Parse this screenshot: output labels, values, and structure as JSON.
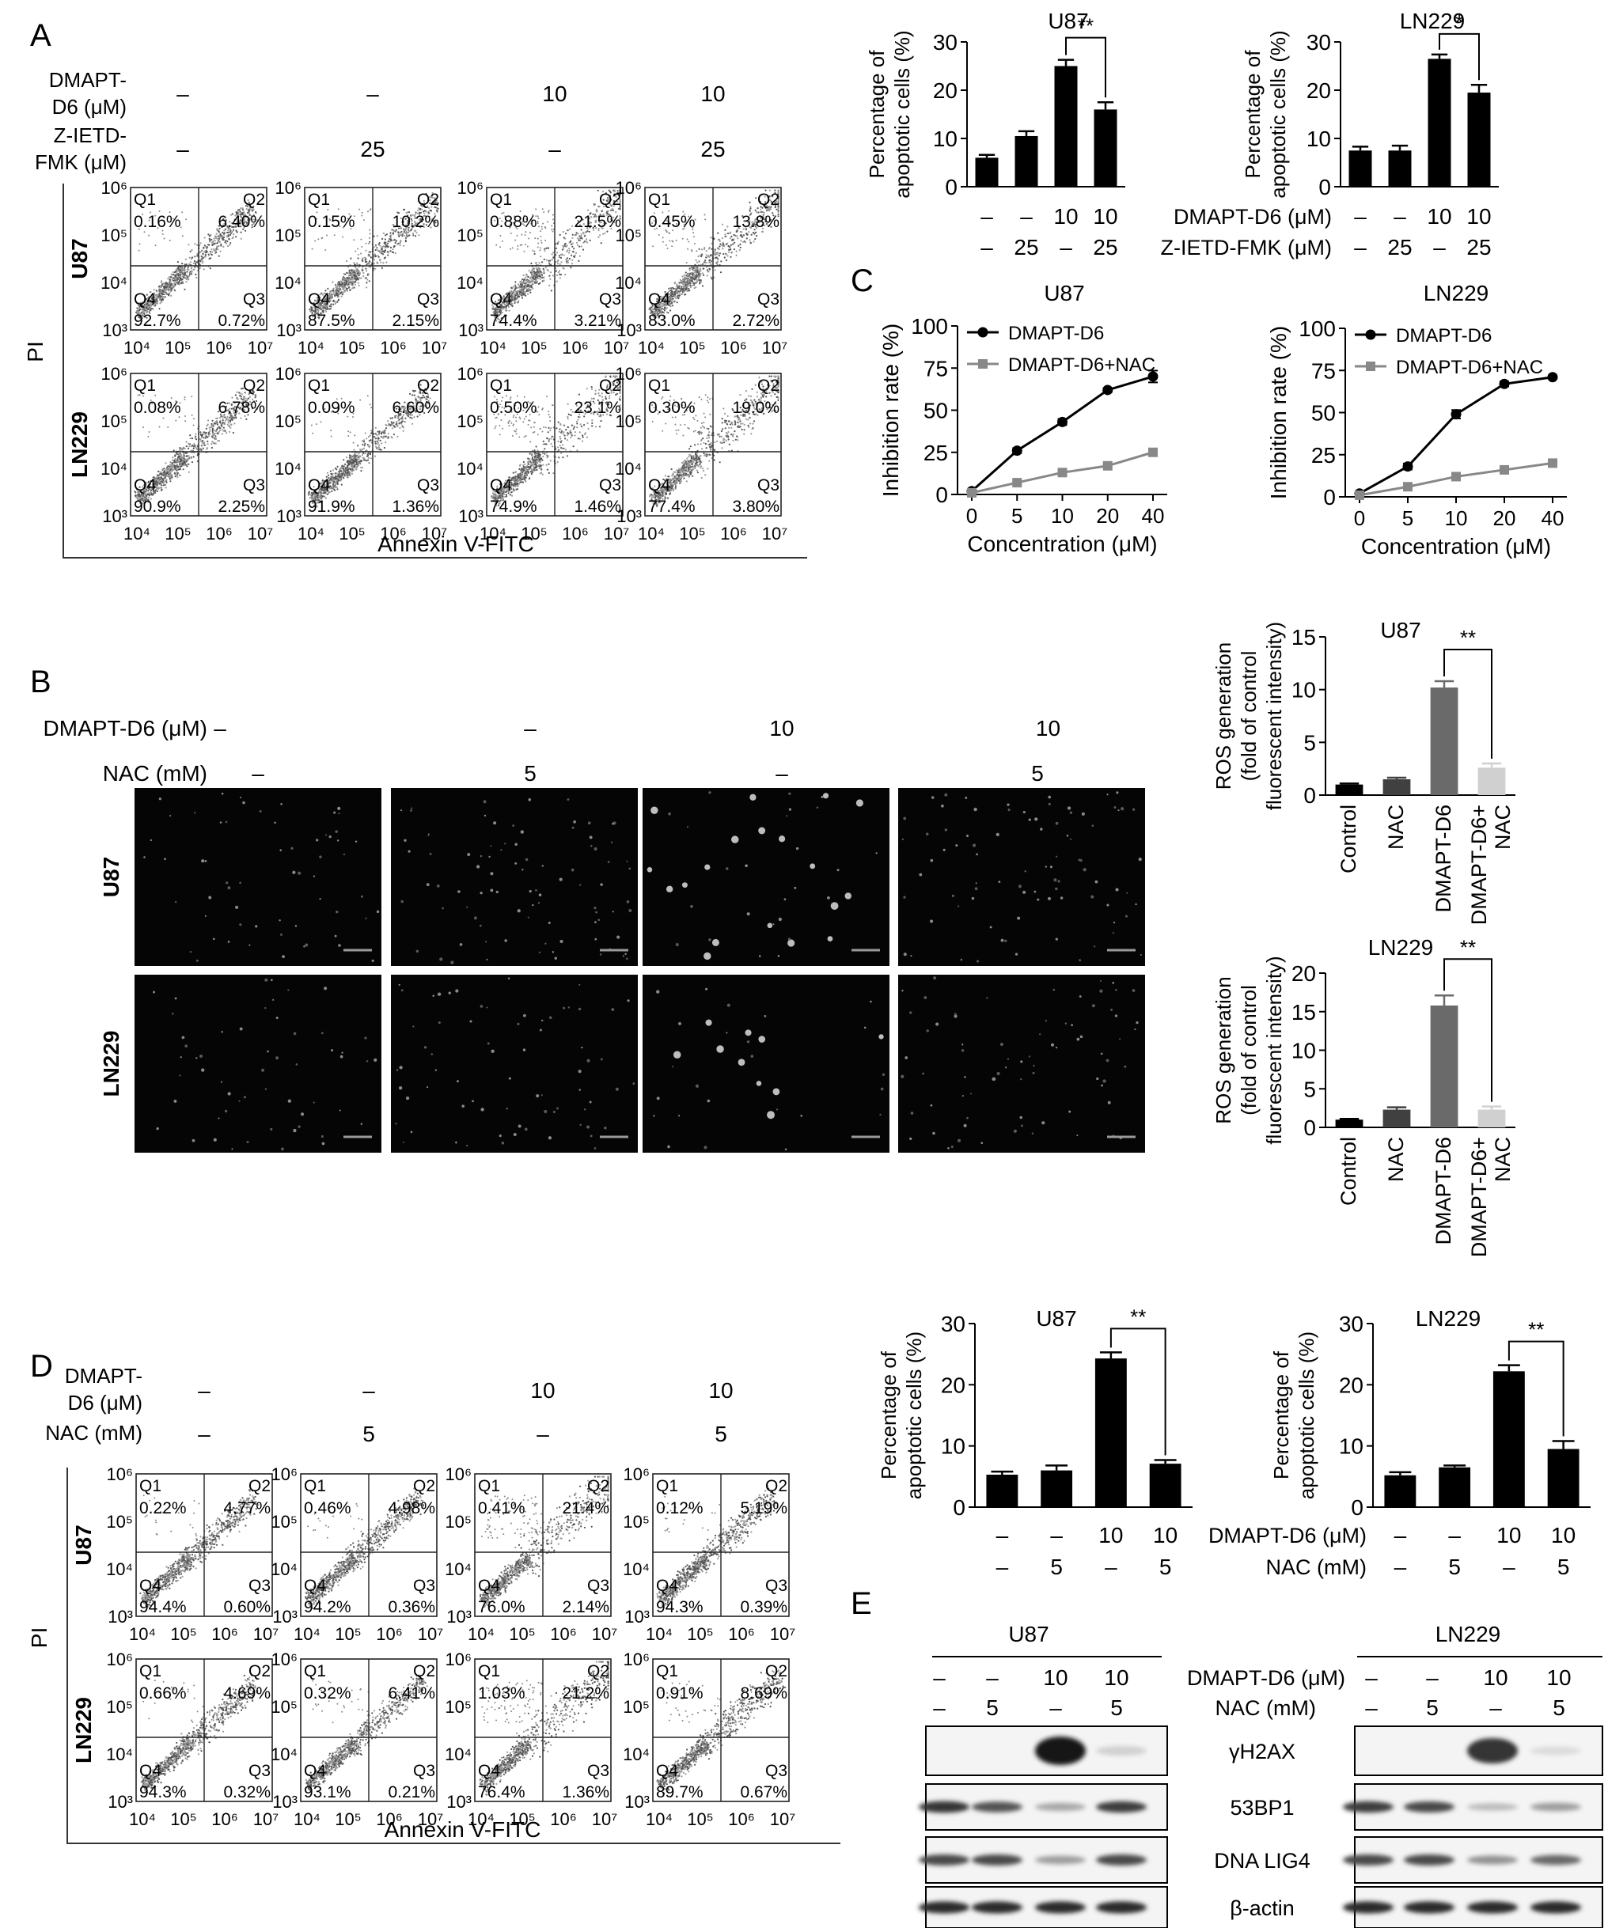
{
  "panel_letters": [
    "A",
    "B",
    "C",
    "D",
    "E"
  ],
  "flow_panel_A": {
    "treat_row1_label": [
      "DMAPT-",
      "D6 (μM)"
    ],
    "treat_row2_label": [
      "Z-IETD-",
      "FMK (μM)"
    ],
    "treat_row1_values": [
      "–",
      "–",
      "10",
      "10"
    ],
    "treat_row2_values": [
      "–",
      "25",
      "–",
      "25"
    ],
    "y_label": "PI",
    "x_label": "Annexin V-FITC",
    "row_labels": [
      "U87",
      "LN229"
    ],
    "quadrant_names": [
      "Q1",
      "Q2",
      "Q3",
      "Q4"
    ],
    "plots": [
      [
        {
          "q1": "0.16%",
          "q2": "6.40%",
          "q3": "0.72%",
          "q4": "92.7%"
        },
        {
          "q1": "0.15%",
          "q2": "10.2%",
          "q3": "2.15%",
          "q4": "87.5%"
        },
        {
          "q1": "0.88%",
          "q2": "21.5%",
          "q3": "3.21%",
          "q4": "74.4%"
        },
        {
          "q1": "0.45%",
          "q2": "13.8%",
          "q3": "2.72%",
          "q4": "83.0%"
        }
      ],
      [
        {
          "q1": "0.08%",
          "q2": "6.78%",
          "q3": "2.25%",
          "q4": "90.9%"
        },
        {
          "q1": "0.09%",
          "q2": "6.60%",
          "q3": "1.36%",
          "q4": "91.9%"
        },
        {
          "q1": "0.50%",
          "q2": "23.1%",
          "q3": "1.46%",
          "q4": "74.9%"
        },
        {
          "q1": "0.30%",
          "q2": "19.0%",
          "q3": "3.80%",
          "q4": "77.4%"
        }
      ]
    ],
    "y_ticks": [
      "10³",
      "10⁴",
      "10⁵",
      "10⁶"
    ],
    "x_ticks": [
      "10⁴",
      "10⁵",
      "10⁶",
      "10⁷"
    ]
  },
  "flow_panel_D": {
    "treat_row1_label": [
      "DMAPT-",
      "D6 (μM)"
    ],
    "treat_row2_label": [
      "NAC (mM)"
    ],
    "treat_row1_values": [
      "–",
      "–",
      "10",
      "10"
    ],
    "treat_row2_values": [
      "–",
      "5",
      "–",
      "5"
    ],
    "y_label": "PI",
    "x_label": "Annexin V-FITC",
    "row_labels": [
      "U87",
      "LN229"
    ],
    "plots": [
      [
        {
          "q1": "0.22%",
          "q2": "4.77%",
          "q3": "0.60%",
          "q4": "94.4%"
        },
        {
          "q1": "0.46%",
          "q2": "4.98%",
          "q3": "0.36%",
          "q4": "94.2%"
        },
        {
          "q1": "0.41%",
          "q2": "21.4%",
          "q3": "2.14%",
          "q4": "76.0%"
        },
        {
          "q1": "0.12%",
          "q2": "5.19%",
          "q3": "0.39%",
          "q4": "94.3%"
        }
      ],
      [
        {
          "q1": "0.66%",
          "q2": "4.69%",
          "q3": "0.32%",
          "q4": "94.3%"
        },
        {
          "q1": "0.32%",
          "q2": "6.41%",
          "q3": "0.21%",
          "q4": "93.1%"
        },
        {
          "q1": "1.03%",
          "q2": "21.2%",
          "q3": "1.36%",
          "q4": "76.4%"
        },
        {
          "q1": "0.91%",
          "q2": "8.69%",
          "q3": "0.67%",
          "q4": "89.7%"
        }
      ]
    ]
  },
  "imaging_panel_B": {
    "treat_row1_label": "DMAPT-D6 (μM)",
    "treat_row2_label": "NAC (mM)",
    "treat_row1_values": [
      "–",
      "–",
      "10",
      "10"
    ],
    "treat_row2_values": [
      "–",
      "5",
      "–",
      "5"
    ],
    "row_labels": [
      "U87",
      "LN229"
    ]
  },
  "western_panel_E": {
    "cell_lines": [
      "U87",
      "LN229"
    ],
    "treat_row1_label": "DMAPT-D6 (μM)",
    "treat_row2_label": "NAC (mM)",
    "treat_row1_values": [
      "–",
      "–",
      "10",
      "10"
    ],
    "treat_row2_values": [
      "–",
      "5",
      "–",
      "5"
    ],
    "proteins": [
      "γH2AX",
      "53BP1",
      "DNA LIG4",
      "β-actin"
    ],
    "band_intensity_U87": [
      [
        0.0,
        0.0,
        1.0,
        0.1
      ],
      [
        0.85,
        0.7,
        0.3,
        0.8
      ],
      [
        0.75,
        0.75,
        0.35,
        0.75
      ],
      [
        0.9,
        0.9,
        0.9,
        0.9
      ]
    ],
    "band_intensity_LN229": [
      [
        0.0,
        0.0,
        0.85,
        0.05
      ],
      [
        0.8,
        0.75,
        0.2,
        0.35
      ],
      [
        0.75,
        0.75,
        0.4,
        0.6
      ],
      [
        0.9,
        0.9,
        0.9,
        0.9
      ]
    ]
  },
  "bar_treatment_labels": {
    "A_row1_label": "DMAPT-D6 (μM)",
    "A_row2_label": "Z-IETD-FMK (μM)",
    "A_row1": [
      "–",
      "–",
      "10",
      "10"
    ],
    "A_row2": [
      "–",
      "25",
      "–",
      "25"
    ],
    "D_row1_label": "DMAPT-D6 (μM)",
    "D_row2_label": "NAC (mM)",
    "D_row1": [
      "–",
      "–",
      "10",
      "10"
    ],
    "D_row2": [
      "–",
      "5",
      "–",
      "5"
    ]
  },
  "chart_data": [
    {
      "id": "A-U87",
      "type": "bar",
      "title": "U87",
      "ylabel": "Percentage of apoptotic cells (%)",
      "ylim": [
        0,
        30
      ],
      "yticks": [
        0,
        10,
        20,
        30
      ],
      "values": [
        6,
        10.5,
        25,
        16
      ],
      "errors": [
        0.6,
        1.0,
        1.3,
        1.5
      ],
      "colors": [
        "#000000",
        "#000000",
        "#000000",
        "#000000"
      ],
      "significance": [
        {
          "from": 2,
          "to": 3,
          "label": "**"
        }
      ]
    },
    {
      "id": "A-LN229",
      "type": "bar",
      "title": "LN229",
      "ylabel": "Percentage of apoptotic cells (%)",
      "ylim": [
        0,
        30
      ],
      "yticks": [
        0,
        10,
        20,
        30
      ],
      "values": [
        7.5,
        7.5,
        26.5,
        19.5
      ],
      "errors": [
        0.8,
        1.0,
        0.9,
        1.6
      ],
      "colors": [
        "#000000",
        "#000000",
        "#000000",
        "#000000"
      ],
      "significance": [
        {
          "from": 2,
          "to": 3,
          "label": "*"
        }
      ]
    },
    {
      "id": "C-U87",
      "type": "line",
      "title": "U87",
      "xlabel": "Concentration (μM)",
      "ylabel": "Inhibition rate (%)",
      "categories": [
        "0",
        "5",
        "10",
        "20",
        "40"
      ],
      "ylim": [
        0,
        100
      ],
      "yticks": [
        0,
        25,
        50,
        75,
        100
      ],
      "series": [
        {
          "name": "DMAPT-D6",
          "values": [
            2,
            26,
            43,
            62,
            70
          ],
          "errors": [
            0.5,
            1.5,
            1.8,
            1.2,
            3.5
          ],
          "color": "#000000",
          "marker": "circle"
        },
        {
          "name": "DMAPT-D6+NAC",
          "values": [
            1,
            7,
            13,
            17,
            25
          ],
          "errors": [
            0.4,
            0.8,
            0.9,
            0.9,
            1.0
          ],
          "color": "#888888",
          "marker": "square"
        }
      ],
      "legend": "top-left"
    },
    {
      "id": "C-LN229",
      "type": "line",
      "title": "LN229",
      "xlabel": "Concentration (μM)",
      "ylabel": "Inhibition rate (%)",
      "categories": [
        "0",
        "5",
        "10",
        "20",
        "40"
      ],
      "ylim": [
        0,
        100
      ],
      "yticks": [
        0,
        25,
        50,
        75,
        100
      ],
      "series": [
        {
          "name": "DMAPT-D6",
          "values": [
            2,
            18,
            49,
            67,
            71
          ],
          "errors": [
            0.5,
            1.8,
            2.5,
            1.5,
            1.0
          ],
          "color": "#000000",
          "marker": "circle"
        },
        {
          "name": "DMAPT-D6+NAC",
          "values": [
            1,
            6,
            12,
            16,
            20
          ],
          "errors": [
            0.4,
            0.8,
            0.9,
            0.9,
            1.0
          ],
          "color": "#888888",
          "marker": "square"
        }
      ],
      "legend": "top-left"
    },
    {
      "id": "B-U87",
      "type": "bar",
      "title": "U87",
      "ylabel": "ROS generation (fold of control fluorescent intensity)",
      "categories": [
        "Control",
        "NAC",
        "DMAPT-D6",
        "DMAPT-D6+ NAC"
      ],
      "ylim": [
        0,
        15
      ],
      "yticks": [
        0,
        5,
        10,
        15
      ],
      "values": [
        1.0,
        1.5,
        10.2,
        2.6
      ],
      "errors": [
        0.1,
        0.15,
        0.6,
        0.4
      ],
      "colors": [
        "#000000",
        "#404040",
        "#6a6a6a",
        "#d0d0d0"
      ],
      "significance": [
        {
          "from": 2,
          "to": 3,
          "label": "**"
        }
      ]
    },
    {
      "id": "B-LN229",
      "type": "bar",
      "title": "LN229",
      "ylabel": "ROS generation (fold of control fluorescent intensity)",
      "categories": [
        "Control",
        "NAC",
        "DMAPT-D6",
        "DMAPT-D6+ NAC"
      ],
      "ylim": [
        0,
        20
      ],
      "yticks": [
        0,
        5,
        10,
        15,
        20
      ],
      "values": [
        1.0,
        2.3,
        15.8,
        2.3
      ],
      "errors": [
        0.1,
        0.3,
        1.3,
        0.4
      ],
      "colors": [
        "#000000",
        "#404040",
        "#6a6a6a",
        "#d0d0d0"
      ],
      "significance": [
        {
          "from": 2,
          "to": 3,
          "label": "**"
        }
      ]
    },
    {
      "id": "D-U87",
      "type": "bar",
      "title": "U87",
      "ylabel": "Percentage of apoptotic cells (%)",
      "ylim": [
        0,
        30
      ],
      "yticks": [
        0,
        10,
        20,
        30
      ],
      "values": [
        5.3,
        6.0,
        24.3,
        7.1
      ],
      "errors": [
        0.5,
        0.8,
        1.0,
        0.6
      ],
      "colors": [
        "#000000",
        "#000000",
        "#000000",
        "#000000"
      ],
      "significance": [
        {
          "from": 2,
          "to": 3,
          "label": "**"
        }
      ]
    },
    {
      "id": "D-LN229",
      "type": "bar",
      "title": "LN229",
      "ylabel": "Percentage of apoptotic cells (%)",
      "ylim": [
        0,
        30
      ],
      "yticks": [
        0,
        10,
        20,
        30
      ],
      "values": [
        5.2,
        6.5,
        22.2,
        9.5
      ],
      "errors": [
        0.5,
        0.3,
        1.0,
        1.3
      ],
      "colors": [
        "#000000",
        "#000000",
        "#000000",
        "#000000"
      ],
      "significance": [
        {
          "from": 2,
          "to": 3,
          "label": "**"
        }
      ]
    }
  ]
}
